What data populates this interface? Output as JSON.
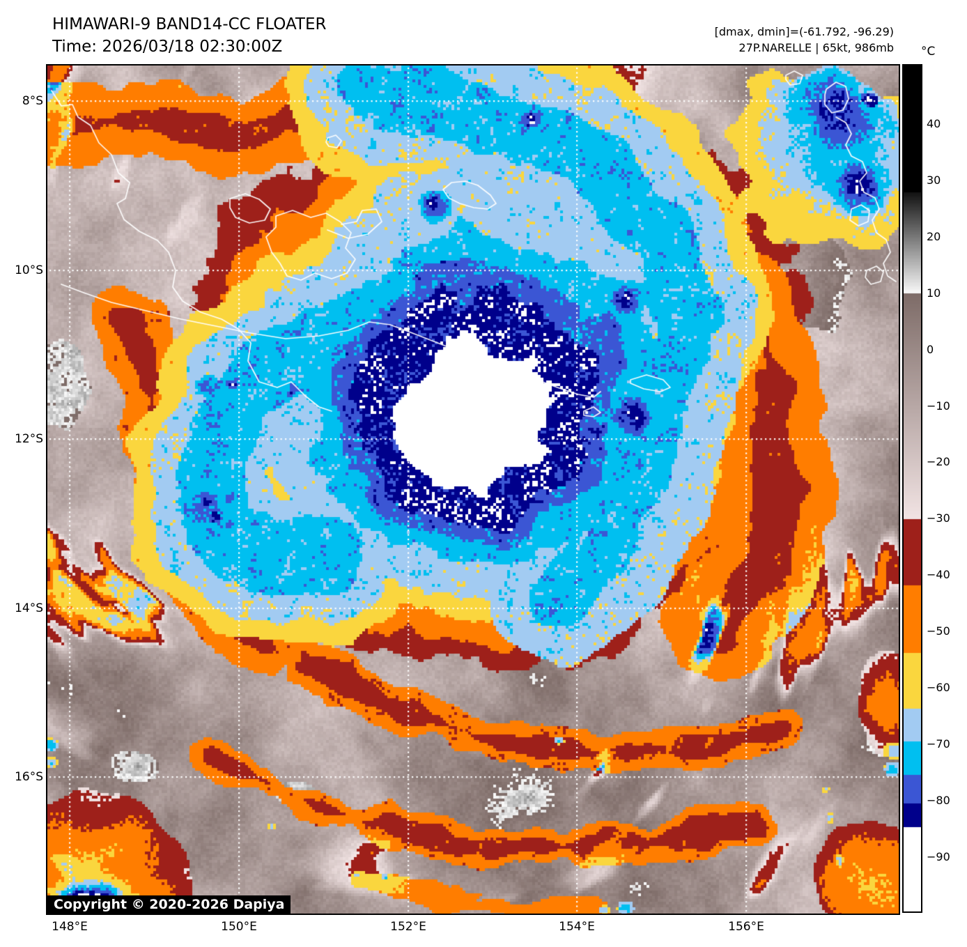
{
  "header": {
    "title": "HIMAWARI-9 BAND14-CC FLOATER",
    "time": "Time: 2026/03/18 02:30:00Z",
    "range_info": "[dmax, dmin]=(-61.792, -96.29)",
    "storm_info": "27P.NARELLE | 65kt, 986mb"
  },
  "storm": {
    "id": "27P",
    "name": "NARELLE",
    "intensity": "65kt",
    "pressure": "986mb",
    "dmax": "-61.792",
    "dmin": "-96.29"
  },
  "map": {
    "copyright": "Copyright © 2020-2026 Dapiya",
    "x_ticks": [
      "148°E",
      "150°E",
      "152°E",
      "154°E",
      "156°E"
    ],
    "y_ticks": [
      "8°S",
      "10°S",
      "12°S",
      "14°S",
      "16°S"
    ]
  },
  "colorbar": {
    "unit": "°C",
    "ticks": [
      "40",
      "30",
      "20",
      "10",
      "0",
      "−10",
      "−20",
      "−30",
      "−40",
      "−50",
      "−60",
      "−70",
      "−80",
      "−90"
    ],
    "palette": [
      {
        "range": "above 28",
        "color": "#000000"
      },
      {
        "range": "10 to 28",
        "color": "#fafafa to #141414 gradient"
      },
      {
        "range": "-30 to 10",
        "color": "#f2e4e4 to #7e6c68 gradient"
      },
      {
        "range": "-41.8 to -30",
        "color": "#9e201a"
      },
      {
        "range": "-53.7 to -41.8",
        "color": "#ff7d00"
      },
      {
        "range": "-63.7 to -53.7",
        "color": "#fad63e"
      },
      {
        "range": "-69.5 to -63.7",
        "color": "#a2cbf2"
      },
      {
        "range": "-75.4 to -69.5",
        "color": "#00bff0"
      },
      {
        "range": "-80.5 to -75.4",
        "color": "#3b56d4"
      },
      {
        "range": "-84.6 to -80.5",
        "color": "#00008b"
      },
      {
        "range": "below -84.6",
        "color": "#ffffff"
      }
    ]
  }
}
